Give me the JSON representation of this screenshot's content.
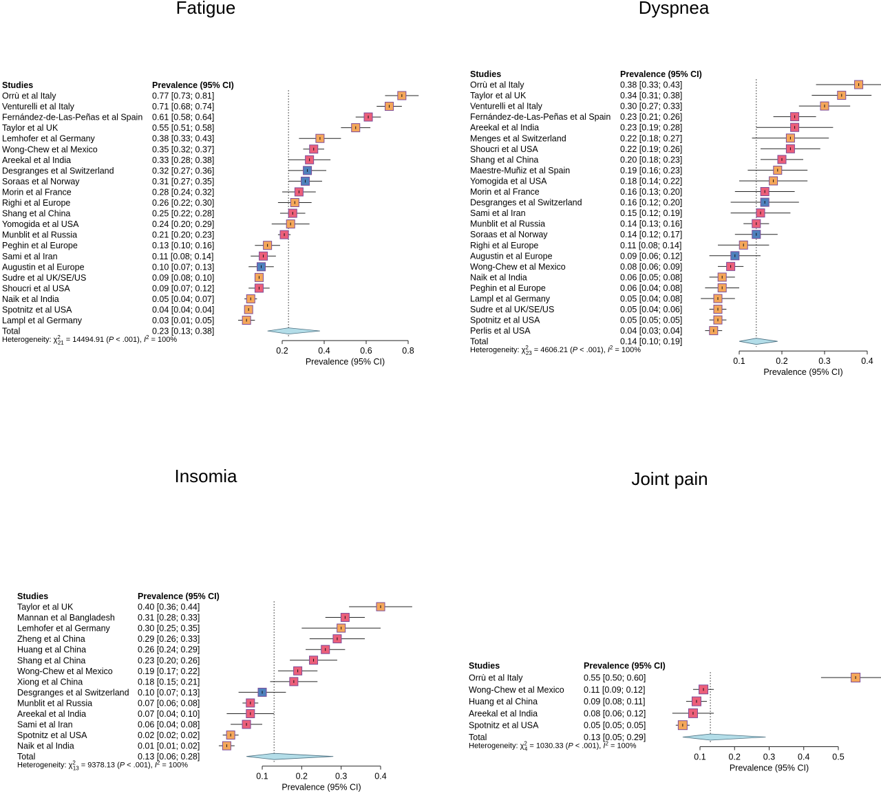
{
  "colors": {
    "orange": "#f5a75a",
    "red": "#ec5f7a",
    "blue": "#4f81bd",
    "border": "#7b4b9a",
    "diamond": "#b3dde8"
  },
  "chart_data": [
    {
      "type": "forest",
      "title": "Fatigue",
      "col_study": "Studies",
      "col_prev": "Prevalence (95% CI)",
      "xlabel": "Prevalence (95% CI)",
      "ticks": [
        "0.2",
        "0.4",
        "0.6",
        "0.8"
      ],
      "xlim": [
        0.0,
        0.8
      ],
      "reference": 0.23,
      "studies": [
        {
          "label": "Orrù et al Italy",
          "text": "0.77 [0.73; 0.81]",
          "est": 0.77,
          "lo": 0.73,
          "hi": 0.81,
          "color": "orange"
        },
        {
          "label": "Venturelli et al Italy",
          "text": "0.71 [0.68; 0.74]",
          "est": 0.71,
          "lo": 0.68,
          "hi": 0.74,
          "color": "orange"
        },
        {
          "label": "Fernández-de-Las-Peñas et al Spain",
          "text": "0.61 [0.58; 0.64]",
          "est": 0.61,
          "lo": 0.58,
          "hi": 0.64,
          "color": "red"
        },
        {
          "label": "Taylor et al UK",
          "text": "0.55 [0.51; 0.58]",
          "est": 0.55,
          "lo": 0.51,
          "hi": 0.58,
          "color": "orange"
        },
        {
          "label": "Lemhofer et al Germany",
          "text": "0.38 [0.33; 0.43]",
          "est": 0.38,
          "lo": 0.33,
          "hi": 0.43,
          "color": "orange"
        },
        {
          "label": "Wong-Chew et al Mexico",
          "text": "0.35 [0.32; 0.37]",
          "est": 0.35,
          "lo": 0.32,
          "hi": 0.37,
          "color": "red"
        },
        {
          "label": "Areekal et al India",
          "text": "0.33 [0.28; 0.38]",
          "est": 0.33,
          "lo": 0.28,
          "hi": 0.38,
          "color": "red"
        },
        {
          "label": "Desgranges et al Switzerland",
          "text": "0.32 [0.27; 0.36]",
          "est": 0.32,
          "lo": 0.27,
          "hi": 0.36,
          "color": "blue"
        },
        {
          "label": "Soraas  et al Norway",
          "text": "0.31 [0.27; 0.35]",
          "est": 0.31,
          "lo": 0.27,
          "hi": 0.35,
          "color": "blue"
        },
        {
          "label": "Morin et al France",
          "text": "0.28 [0.24; 0.32]",
          "est": 0.28,
          "lo": 0.24,
          "hi": 0.32,
          "color": "red"
        },
        {
          "label": "Righi et al Europe",
          "text": "0.26 [0.22; 0.30]",
          "est": 0.26,
          "lo": 0.22,
          "hi": 0.3,
          "color": "orange"
        },
        {
          "label": "Shang et al China",
          "text": "0.25 [0.22; 0.28]",
          "est": 0.25,
          "lo": 0.22,
          "hi": 0.28,
          "color": "red"
        },
        {
          "label": "Yomogida et al USA",
          "text": "0.24 [0.20; 0.29]",
          "est": 0.24,
          "lo": 0.2,
          "hi": 0.29,
          "color": "orange"
        },
        {
          "label": "Munblit et al Russia",
          "text": "0.21 [0.20; 0.23]",
          "est": 0.21,
          "lo": 0.2,
          "hi": 0.23,
          "color": "red"
        },
        {
          "label": "Peghin et al Europe",
          "text": "0.13 [0.10; 0.16]",
          "est": 0.13,
          "lo": 0.1,
          "hi": 0.16,
          "color": "orange"
        },
        {
          "label": "Sami et al Iran",
          "text": "0.11 [0.08; 0.14]",
          "est": 0.11,
          "lo": 0.08,
          "hi": 0.14,
          "color": "red"
        },
        {
          "label": "Augustin et al Europe",
          "text": "0.10 [0.07; 0.13]",
          "est": 0.1,
          "lo": 0.07,
          "hi": 0.13,
          "color": "blue"
        },
        {
          "label": "Sudre et al UK/SE/US",
          "text": "0.09 [0.08; 0.10]",
          "est": 0.09,
          "lo": 0.08,
          "hi": 0.1,
          "color": "orange"
        },
        {
          "label": "Shoucri et al USA",
          "text": "0.09 [0.07; 0.12]",
          "est": 0.09,
          "lo": 0.07,
          "hi": 0.12,
          "color": "red"
        },
        {
          "label": "Naik et al India",
          "text": "0.05 [0.04; 0.07]",
          "est": 0.05,
          "lo": 0.04,
          "hi": 0.07,
          "color": "orange"
        },
        {
          "label": "Spotnitz et al USA",
          "text": "0.04 [0.04; 0.04]",
          "est": 0.04,
          "lo": 0.04,
          "hi": 0.04,
          "color": "orange"
        },
        {
          "label": "Lampl et al Germany",
          "text": "0.03 [0.01; 0.05]",
          "est": 0.03,
          "lo": 0.01,
          "hi": 0.05,
          "color": "orange"
        }
      ],
      "total": {
        "label": "Total",
        "text": "0.23 [0.13; 0.38]",
        "est": 0.23,
        "lo": 0.13,
        "hi": 0.38
      },
      "heterogeneity": {
        "prefix": "Heterogeneity: χ",
        "sup": "2",
        "sub": "21",
        "stat": " = 14494.91 (",
        "p": "P",
        "pval": " < .001), ",
        "i": "I",
        "isup": "2",
        "ival": " = 100%"
      }
    },
    {
      "type": "forest",
      "title": "Dyspnea",
      "col_study": "Studies",
      "col_prev": "Prevalence (95% CI)",
      "xlabel": "Prevalence (95% CI)",
      "ticks": [
        "0.1",
        "0.2",
        "0.3",
        "0.4"
      ],
      "xlim": [
        0.0,
        0.4
      ],
      "reference": 0.14,
      "studies": [
        {
          "label": "Orrù et al Italy",
          "text": "0.38 [0.33; 0.43]",
          "est": 0.38,
          "lo": 0.33,
          "hi": 0.43,
          "color": "orange"
        },
        {
          "label": "Taylor et al UK",
          "text": "0.34 [0.31; 0.38]",
          "est": 0.34,
          "lo": 0.31,
          "hi": 0.38,
          "color": "orange"
        },
        {
          "label": "Venturelli et al Italy",
          "text": "0.30 [0.27; 0.33]",
          "est": 0.3,
          "lo": 0.27,
          "hi": 0.33,
          "color": "orange"
        },
        {
          "label": "Fernández-de-Las-Peñas et al Spain",
          "text": "0.23 [0.21; 0.26]",
          "est": 0.23,
          "lo": 0.21,
          "hi": 0.26,
          "color": "red"
        },
        {
          "label": "Areekal et al India",
          "text": "0.23 [0.19; 0.28]",
          "est": 0.23,
          "lo": 0.19,
          "hi": 0.28,
          "color": "red"
        },
        {
          "label": "Menges et al Switzerland",
          "text": "0.22 [0.18; 0.27]",
          "est": 0.22,
          "lo": 0.18,
          "hi": 0.27,
          "color": "orange"
        },
        {
          "label": "Shoucri et al USA",
          "text": "0.22 [0.19; 0.26]",
          "est": 0.22,
          "lo": 0.19,
          "hi": 0.26,
          "color": "red"
        },
        {
          "label": "Shang et al China",
          "text": "0.20 [0.18; 0.23]",
          "est": 0.2,
          "lo": 0.18,
          "hi": 0.23,
          "color": "red"
        },
        {
          "label": "Maestre-Muñiz et al Spain",
          "text": "0.19 [0.16; 0.23]",
          "est": 0.19,
          "lo": 0.16,
          "hi": 0.23,
          "color": "orange"
        },
        {
          "label": "Yomogida et al USA",
          "text": "0.18 [0.14; 0.22]",
          "est": 0.18,
          "lo": 0.14,
          "hi": 0.22,
          "color": "orange"
        },
        {
          "label": "Morin et al France",
          "text": "0.16 [0.13; 0.20]",
          "est": 0.16,
          "lo": 0.13,
          "hi": 0.2,
          "color": "red"
        },
        {
          "label": "Desgranges et al Switzerland",
          "text": "0.16 [0.12; 0.20]",
          "est": 0.16,
          "lo": 0.12,
          "hi": 0.2,
          "color": "blue"
        },
        {
          "label": "Sami et al Iran",
          "text": "0.15 [0.12; 0.19]",
          "est": 0.15,
          "lo": 0.12,
          "hi": 0.19,
          "color": "red"
        },
        {
          "label": "Munblit et al Russia",
          "text": "0.14 [0.13; 0.16]",
          "est": 0.14,
          "lo": 0.13,
          "hi": 0.16,
          "color": "red"
        },
        {
          "label": "Soraas  et al Norway",
          "text": "0.14 [0.12; 0.17]",
          "est": 0.14,
          "lo": 0.12,
          "hi": 0.17,
          "color": "blue"
        },
        {
          "label": "Righi et al Europe",
          "text": "0.11 [0.08; 0.14]",
          "est": 0.11,
          "lo": 0.08,
          "hi": 0.14,
          "color": "orange"
        },
        {
          "label": "Augustin et al Europe",
          "text": "0.09 [0.06; 0.12]",
          "est": 0.09,
          "lo": 0.06,
          "hi": 0.12,
          "color": "blue"
        },
        {
          "label": "Wong-Chew et al Mexico",
          "text": "0.08 [0.06; 0.09]",
          "est": 0.08,
          "lo": 0.06,
          "hi": 0.09,
          "color": "red"
        },
        {
          "label": "Naik et al India",
          "text": "0.06 [0.05; 0.08]",
          "est": 0.06,
          "lo": 0.05,
          "hi": 0.08,
          "color": "orange"
        },
        {
          "label": "Peghin et al Europe",
          "text": "0.06 [0.04; 0.08]",
          "est": 0.06,
          "lo": 0.04,
          "hi": 0.08,
          "color": "orange"
        },
        {
          "label": "Lampl et al Germany",
          "text": "0.05 [0.04; 0.08]",
          "est": 0.05,
          "lo": 0.04,
          "hi": 0.08,
          "color": "orange"
        },
        {
          "label": "Sudre et al UK/SE/US",
          "text": "0.05 [0.04; 0.06]",
          "est": 0.05,
          "lo": 0.04,
          "hi": 0.06,
          "color": "orange"
        },
        {
          "label": "Spotnitz et al USA",
          "text": "0.05 [0.05; 0.05]",
          "est": 0.05,
          "lo": 0.05,
          "hi": 0.05,
          "color": "orange"
        },
        {
          "label": "Perlis et al USA",
          "text": "0.04 [0.03; 0.04]",
          "est": 0.04,
          "lo": 0.03,
          "hi": 0.04,
          "color": "orange"
        }
      ],
      "total": {
        "label": "Total",
        "text": "0.14 [0.10; 0.19]",
        "est": 0.14,
        "lo": 0.1,
        "hi": 0.19
      },
      "heterogeneity": {
        "prefix": "Heterogeneity: χ",
        "sup": "2",
        "sub": "23",
        "stat": " = 4606.21 (",
        "p": "P",
        "pval": " < .001), ",
        "i": "I",
        "isup": "2",
        "ival": " = 100%"
      }
    },
    {
      "type": "forest",
      "title": "Insomia",
      "col_study": "Studies",
      "col_prev": "Prevalence (95% CI)",
      "xlabel": "Prevalence (95% CI)",
      "ticks": [
        "0.1",
        "0.2",
        "0.3",
        "0.4"
      ],
      "xlim": [
        0.0,
        0.4
      ],
      "reference": 0.13,
      "studies": [
        {
          "label": "Taylor et al UK",
          "text": "0.40 [0.36; 0.44]",
          "est": 0.4,
          "lo": 0.36,
          "hi": 0.44,
          "color": "orange"
        },
        {
          "label": "Mannan et al Bangladesh",
          "text": "0.31 [0.28; 0.33]",
          "est": 0.31,
          "lo": 0.28,
          "hi": 0.33,
          "color": "red"
        },
        {
          "label": "Lemhofer et al Germany",
          "text": "0.30 [0.25; 0.35]",
          "est": 0.3,
          "lo": 0.25,
          "hi": 0.35,
          "color": "orange"
        },
        {
          "label": "Zheng et al China",
          "text": "0.29 [0.26; 0.33]",
          "est": 0.29,
          "lo": 0.26,
          "hi": 0.33,
          "color": "red"
        },
        {
          "label": "Huang et al China",
          "text": "0.26 [0.24; 0.29]",
          "est": 0.26,
          "lo": 0.24,
          "hi": 0.29,
          "color": "red"
        },
        {
          "label": "Shang et al China",
          "text": "0.23 [0.20; 0.26]",
          "est": 0.23,
          "lo": 0.2,
          "hi": 0.26,
          "color": "red"
        },
        {
          "label": "Wong-Chew et al Mexico",
          "text": "0.19 [0.17; 0.22]",
          "est": 0.19,
          "lo": 0.17,
          "hi": 0.22,
          "color": "red"
        },
        {
          "label": "Xiong et al China",
          "text": "0.18 [0.15; 0.21]",
          "est": 0.18,
          "lo": 0.15,
          "hi": 0.21,
          "color": "red"
        },
        {
          "label": "Desgranges et al Switzerland",
          "text": "0.10 [0.07; 0.13]",
          "est": 0.1,
          "lo": 0.07,
          "hi": 0.13,
          "color": "blue"
        },
        {
          "label": "Munblit et al Russia",
          "text": "0.07 [0.06; 0.08]",
          "est": 0.07,
          "lo": 0.06,
          "hi": 0.08,
          "color": "red"
        },
        {
          "label": "Areekal et al India",
          "text": "0.07 [0.04; 0.10]",
          "est": 0.07,
          "lo": 0.04,
          "hi": 0.1,
          "color": "red"
        },
        {
          "label": "Sami et al Iran",
          "text": "0.06 [0.04; 0.08]",
          "est": 0.06,
          "lo": 0.04,
          "hi": 0.08,
          "color": "red"
        },
        {
          "label": "Spotnitz et al USA",
          "text": "0.02 [0.02; 0.02]",
          "est": 0.02,
          "lo": 0.02,
          "hi": 0.02,
          "color": "orange"
        },
        {
          "label": "Naik et al India",
          "text": "0.01 [0.01; 0.02]",
          "est": 0.01,
          "lo": 0.01,
          "hi": 0.02,
          "color": "orange"
        }
      ],
      "total": {
        "label": "Total",
        "text": "0.13 [0.06; 0.28]",
        "est": 0.13,
        "lo": 0.06,
        "hi": 0.28
      },
      "heterogeneity": {
        "prefix": "Heterogeneity: χ",
        "sup": "2",
        "sub": "13",
        "stat": " = 9378.13 (",
        "p": "P",
        "pval": " < .001), ",
        "i": "I",
        "isup": "2",
        "ival": " = 100%"
      }
    },
    {
      "type": "forest",
      "title": "Joint pain",
      "col_study": "Studies",
      "col_prev": "Prevalence (95% CI)",
      "xlabel": "Prevalence (95% CI)",
      "ticks": [
        "0.1",
        "0.2",
        "0.3",
        "0.4",
        "0.5"
      ],
      "xlim": [
        0.0,
        0.6
      ],
      "reference": 0.13,
      "studies": [
        {
          "label": "Orrù et al Italy",
          "text": "0.55 [0.50; 0.60]",
          "est": 0.55,
          "lo": 0.5,
          "hi": 0.6,
          "color": "orange"
        },
        {
          "label": "Wong-Chew et al Mexico",
          "text": "0.11 [0.09; 0.12]",
          "est": 0.11,
          "lo": 0.09,
          "hi": 0.12,
          "color": "red"
        },
        {
          "label": "Huang et al China",
          "text": "0.09 [0.08; 0.11]",
          "est": 0.09,
          "lo": 0.08,
          "hi": 0.11,
          "color": "red"
        },
        {
          "label": "Areekal et al India",
          "text": "0.08 [0.06; 0.12]",
          "est": 0.08,
          "lo": 0.06,
          "hi": 0.12,
          "color": "red"
        },
        {
          "label": "Spotnitz et al USA",
          "text": "0.05 [0.05; 0.05]",
          "est": 0.05,
          "lo": 0.05,
          "hi": 0.05,
          "color": "orange"
        }
      ],
      "total": {
        "label": "Total",
        "text": "0.13 [0.05; 0.29]",
        "est": 0.13,
        "lo": 0.05,
        "hi": 0.29
      },
      "heterogeneity": {
        "prefix": "Heterogeneity: χ",
        "sup": "2",
        "sub": "4",
        "stat": " = 1030.33 (",
        "p": "P",
        "pval": " < .001), ",
        "i": "I",
        "isup": "2",
        "ival": " = 100%"
      }
    }
  ]
}
